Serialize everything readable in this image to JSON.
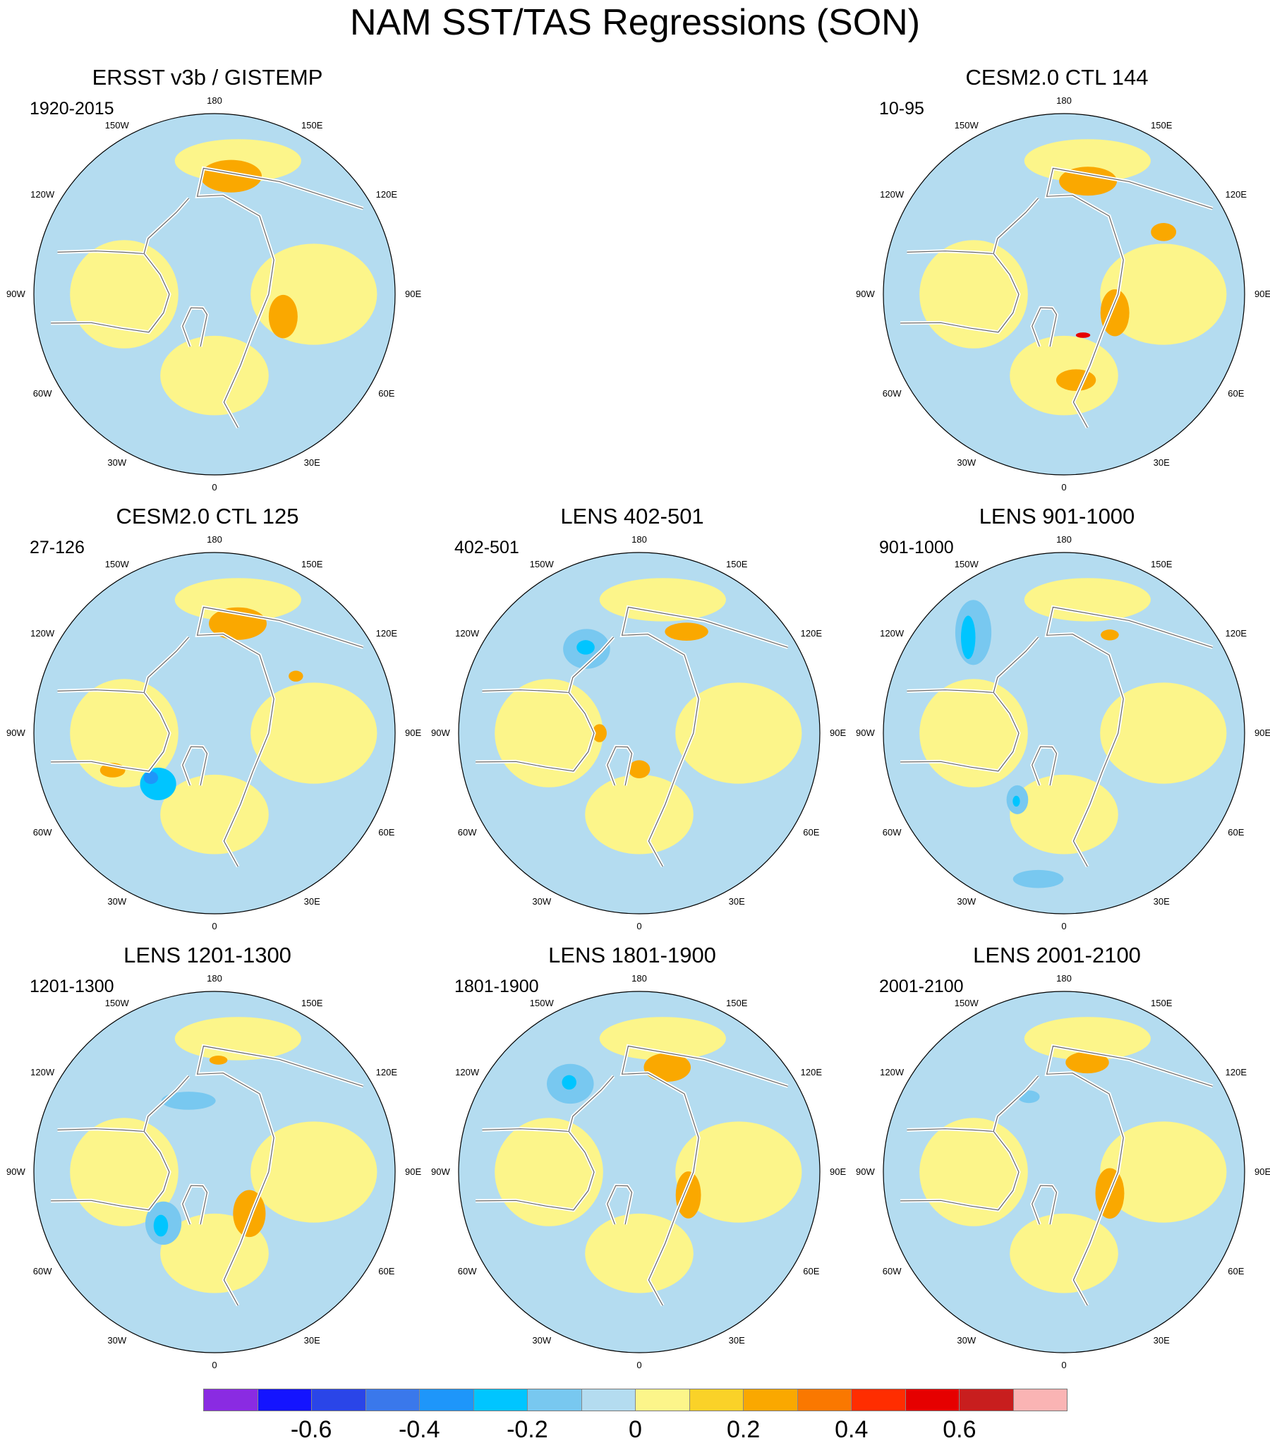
{
  "title": "NAM SST/TAS Regressions (SON)",
  "coords": {
    "top": "180",
    "bottom": "0",
    "left_mid": "90W",
    "right_mid": "90E",
    "upper_left_1": "150W",
    "upper_left_2": "120W",
    "lower_left_1": "60W",
    "lower_left_2": "30W",
    "upper_right_1": "150E",
    "upper_right_2": "120E",
    "lower_right_1": "60E",
    "lower_right_2": "30E"
  },
  "panels": [
    {
      "id": "p1",
      "title": "ERSST v3b / GISTEMP",
      "years": "1920-2015",
      "anomalies": [
        {
          "lon": 172,
          "r": 0.66,
          "v": 0.2,
          "rx": 0.17,
          "ry": 0.09
        },
        {
          "lon": 168,
          "r": 0.68,
          "v": 0.3,
          "rx": 0.09,
          "ry": 0.045
        },
        {
          "lon": 72,
          "r": 0.4,
          "v": 0.2,
          "rx": 0.08,
          "ry": 0.12
        },
        {
          "lon": 215,
          "r": 0.42,
          "v": -0.1,
          "rx": 0.07,
          "ry": 0.03
        }
      ]
    },
    {
      "id": "p2",
      "title": "CESM2.0 CTL 144",
      "years": "10-95",
      "anomalies": [
        {
          "lon": 168,
          "r": 0.64,
          "v": 0.2,
          "rx": 0.16,
          "ry": 0.08
        },
        {
          "lon": 168,
          "r": 0.66,
          "v": 0.3,
          "rx": 0.07,
          "ry": 0.035
        },
        {
          "lon": 70,
          "r": 0.3,
          "v": 0.2,
          "rx": 0.08,
          "ry": 0.13
        },
        {
          "lon": 122,
          "r": 0.65,
          "v": 0.2,
          "rx": 0.07,
          "ry": 0.05
        },
        {
          "lon": 8,
          "r": 0.48,
          "v": 0.2,
          "rx": 0.11,
          "ry": 0.06
        },
        {
          "lon": 25,
          "r": 0.25,
          "v": 0.5,
          "rx": 0.04,
          "ry": 0.015
        }
      ]
    },
    {
      "id": "p3",
      "title": "CESM2.0 CTL 125",
      "years": "27-126",
      "anomalies": [
        {
          "lon": 168,
          "r": 0.62,
          "v": 0.2,
          "rx": 0.16,
          "ry": 0.09
        },
        {
          "lon": 165,
          "r": 0.64,
          "v": 0.3,
          "rx": 0.06,
          "ry": 0.035
        },
        {
          "lon": 312,
          "r": 0.42,
          "v": -0.3,
          "rx": 0.1,
          "ry": 0.09
        },
        {
          "lon": 305,
          "r": 0.43,
          "v": -0.4,
          "rx": 0.04,
          "ry": 0.035
        },
        {
          "lon": 290,
          "r": 0.6,
          "v": 0.2,
          "rx": 0.07,
          "ry": 0.04
        },
        {
          "lon": 125,
          "r": 0.55,
          "v": 0.3,
          "rx": 0.04,
          "ry": 0.03
        }
      ]
    },
    {
      "id": "p4",
      "title": "LENS 402-501",
      "years": "402-501",
      "anomalies": [
        {
          "lon": 212,
          "r": 0.55,
          "v": -0.2,
          "rx": 0.13,
          "ry": 0.11
        },
        {
          "lon": 212,
          "r": 0.56,
          "v": -0.3,
          "rx": 0.05,
          "ry": 0.04
        },
        {
          "lon": 155,
          "r": 0.62,
          "v": 0.2,
          "rx": 0.12,
          "ry": 0.05
        },
        {
          "lon": 0,
          "r": 0.2,
          "v": 0.2,
          "rx": 0.06,
          "ry": 0.05
        },
        {
          "lon": 270,
          "r": 0.22,
          "v": 0.2,
          "rx": 0.04,
          "ry": 0.05
        }
      ]
    },
    {
      "id": "p5",
      "title": "LENS 901-1000",
      "years": "901-1000",
      "anomalies": [
        {
          "lon": 222,
          "r": 0.75,
          "v": -0.2,
          "rx": 0.1,
          "ry": 0.18
        },
        {
          "lon": 225,
          "r": 0.75,
          "v": -0.3,
          "rx": 0.04,
          "ry": 0.12
        },
        {
          "lon": 325,
          "r": 0.45,
          "v": -0.2,
          "rx": 0.06,
          "ry": 0.08
        },
        {
          "lon": 325,
          "r": 0.46,
          "v": -0.3,
          "rx": 0.02,
          "ry": 0.03
        },
        {
          "lon": 350,
          "r": 0.82,
          "v": -0.2,
          "rx": 0.14,
          "ry": 0.05
        },
        {
          "lon": 155,
          "r": 0.6,
          "v": 0.2,
          "rx": 0.05,
          "ry": 0.03
        }
      ]
    },
    {
      "id": "p6",
      "title": "LENS 1201-1300",
      "years": "1201-1300",
      "anomalies": [
        {
          "lon": 200,
          "r": 0.42,
          "v": -0.2,
          "rx": 0.15,
          "ry": 0.05
        },
        {
          "lon": 315,
          "r": 0.4,
          "v": -0.2,
          "rx": 0.1,
          "ry": 0.12
        },
        {
          "lon": 315,
          "r": 0.42,
          "v": -0.3,
          "rx": 0.04,
          "ry": 0.06
        },
        {
          "lon": 40,
          "r": 0.3,
          "v": 0.2,
          "rx": 0.09,
          "ry": 0.13
        },
        {
          "lon": 45,
          "r": 0.28,
          "v": 0.3,
          "rx": 0.03,
          "ry": 0.05
        },
        {
          "lon": 178,
          "r": 0.62,
          "v": 0.2,
          "rx": 0.05,
          "ry": 0.025
        }
      ]
    },
    {
      "id": "p7",
      "title": "LENS 1801-1900",
      "years": "1801-1900",
      "anomalies": [
        {
          "lon": 218,
          "r": 0.62,
          "v": -0.2,
          "rx": 0.13,
          "ry": 0.11
        },
        {
          "lon": 218,
          "r": 0.63,
          "v": -0.3,
          "rx": 0.04,
          "ry": 0.04
        },
        {
          "lon": 165,
          "r": 0.6,
          "v": 0.2,
          "rx": 0.13,
          "ry": 0.08
        },
        {
          "lon": 160,
          "r": 0.63,
          "v": 0.3,
          "rx": 0.06,
          "ry": 0.025
        },
        {
          "lon": 65,
          "r": 0.3,
          "v": 0.2,
          "rx": 0.07,
          "ry": 0.13
        }
      ]
    },
    {
      "id": "p8",
      "title": "LENS 2001-2100",
      "years": "2001-2100",
      "anomalies": [
        {
          "lon": 168,
          "r": 0.62,
          "v": 0.2,
          "rx": 0.12,
          "ry": 0.06
        },
        {
          "lon": 205,
          "r": 0.46,
          "v": -0.2,
          "rx": 0.06,
          "ry": 0.035
        },
        {
          "lon": 65,
          "r": 0.28,
          "v": 0.2,
          "rx": 0.08,
          "ry": 0.14
        }
      ]
    }
  ],
  "colorbar": {
    "colors": [
      "#8a2be2",
      "#1414ff",
      "#2a45e8",
      "#3a78eb",
      "#1e96fa",
      "#00c5ff",
      "#78c8f0",
      "#b4dcf0",
      "#fcf58a",
      "#fad228",
      "#faa800",
      "#fa7800",
      "#ff2d00",
      "#e60000",
      "#c81e1e",
      "#fab4b4"
    ],
    "ticks": [
      {
        "label": "-0.6",
        "idx": 2
      },
      {
        "label": "-0.4",
        "idx": 4
      },
      {
        "label": "-0.2",
        "idx": 6
      },
      {
        "label": "0",
        "idx": 8
      },
      {
        "label": "0.2",
        "idx": 10
      },
      {
        "label": "0.4",
        "idx": 12
      },
      {
        "label": "0.6",
        "idx": 14
      }
    ]
  }
}
